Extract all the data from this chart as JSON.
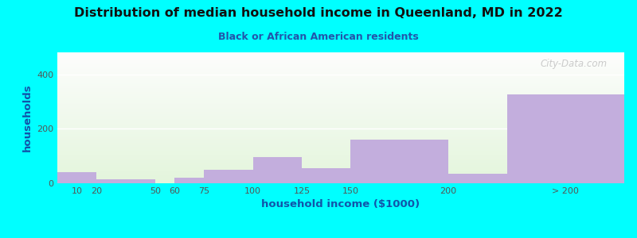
{
  "title": "Distribution of median household income in Queenland, MD in 2022",
  "subtitle": "Black or African American residents",
  "xlabel": "household income ($1000)",
  "ylabel": "households",
  "background_color": "#00FFFF",
  "bar_color": "#C3AEDD",
  "title_color": "#111111",
  "subtitle_color": "#2255AA",
  "axis_label_color": "#1155AA",
  "tick_label_color": "#555555",
  "categories": [
    "10",
    "20",
    "50",
    "60",
    "75",
    "100",
    "125",
    "150",
    "200",
    "> 200"
  ],
  "values": [
    40,
    15,
    0,
    20,
    50,
    95,
    55,
    160,
    35,
    325
  ],
  "edges": [
    0,
    20,
    50,
    60,
    75,
    100,
    125,
    150,
    200,
    230,
    290
  ],
  "tick_positions": [
    10,
    20,
    50,
    60,
    75,
    100,
    125,
    150,
    200,
    260
  ],
  "xlim": [
    0,
    290
  ],
  "ylim": [
    0,
    480
  ],
  "yticks": [
    0,
    200,
    400
  ],
  "watermark": "City-Data.com"
}
